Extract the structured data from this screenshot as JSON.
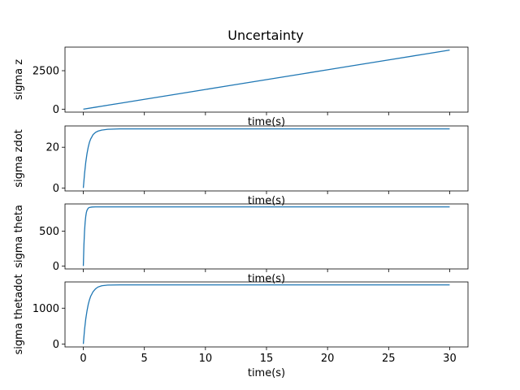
{
  "chart_data": {
    "type": "line",
    "title": "Uncertainty",
    "x": {
      "label": "time(s)",
      "range": [
        -1.5,
        31.5
      ],
      "ticks": [
        0,
        5,
        10,
        15,
        20,
        25,
        30
      ]
    },
    "line_color": "#1f77b4",
    "grid": false,
    "legend": "none",
    "subplots": [
      {
        "ylabel": "sigma z",
        "ylim": [
          -192,
          4032
        ],
        "yticks": [
          0,
          2500
        ],
        "show_xtick_labels": false,
        "series": [
          {
            "x": [
              0,
              1,
              2,
              3,
              5,
              8,
              10,
              12,
              15,
              18,
              20,
              22,
              25,
              28,
              30
            ],
            "y": [
              0,
              128,
              256,
              384,
              640,
              1024,
              1280,
              1536,
              1920,
              2304,
              2560,
              2816,
              3200,
              3584,
              3840
            ]
          }
        ]
      },
      {
        "ylabel": "sigma zdot",
        "ylim": [
          -1.45,
          30.45
        ],
        "yticks": [
          0,
          20
        ],
        "show_xtick_labels": false,
        "series": [
          {
            "x": [
              0,
              0.1,
              0.2,
              0.3,
              0.4,
              0.5,
              0.6,
              0.8,
              1.0,
              1.2,
              1.5,
              2.0,
              3.0,
              5.0,
              10,
              20,
              30
            ],
            "y": [
              0,
              7.0,
              12.6,
              16.8,
              20.0,
              22.4,
              24.0,
              26.2,
              27.3,
              27.9,
              28.4,
              28.8,
              29.0,
              29.0,
              29.0,
              29.0,
              29.0
            ]
          }
        ]
      },
      {
        "ylabel": "sigma theta",
        "ylim": [
          -42.5,
          892.5
        ],
        "yticks": [
          0,
          500
        ],
        "show_xtick_labels": false,
        "series": [
          {
            "x": [
              0,
              0.05,
              0.1,
              0.15,
              0.2,
              0.25,
              0.3,
              0.4,
              0.5,
              0.7,
              1.0,
              1.5,
              3,
              10,
              20,
              30
            ],
            "y": [
              0,
              305,
              500,
              630,
              715,
              770,
              800,
              832,
              842,
              848,
              850,
              850,
              850,
              850,
              850,
              850
            ]
          }
        ]
      },
      {
        "ylabel": "sigma thetadot",
        "ylim": [
          -82.5,
          1732.5
        ],
        "yticks": [
          0,
          1000
        ],
        "show_xtick_labels": true,
        "series": [
          {
            "x": [
              0,
              0.1,
              0.2,
              0.3,
              0.4,
              0.5,
              0.6,
              0.8,
              1.0,
              1.2,
              1.5,
              2.0,
              3.0,
              5.0,
              10,
              20,
              30
            ],
            "y": [
              0,
              400,
              700,
              920,
              1100,
              1230,
              1330,
              1460,
              1540,
              1590,
              1625,
              1645,
              1650,
              1650,
              1650,
              1650,
              1650
            ]
          }
        ]
      }
    ]
  }
}
